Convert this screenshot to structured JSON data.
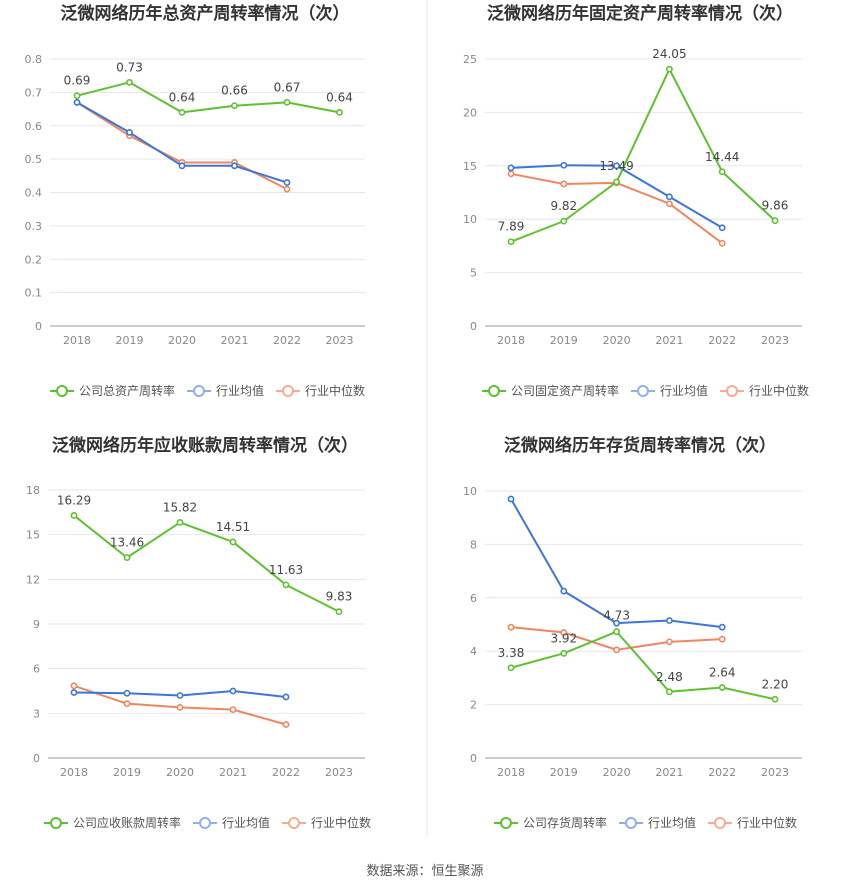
{
  "source_text": "数据来源：恒生聚源",
  "legend_labels": {
    "industry_avg": "行业均值",
    "industry_median": "行业中位数"
  },
  "colors": {
    "company": "#5cc22e",
    "industry_avg": "#3b76d8",
    "industry_median": "#f0865f",
    "grid": "#e6e6f0",
    "divider": "#e8e8e8"
  },
  "chart_data": [
    {
      "type": "line",
      "title": "泛微网络历年总资产周转率情况（次）",
      "categories": [
        "2018",
        "2019",
        "2020",
        "2021",
        "2022",
        "2023"
      ],
      "ylim": [
        0,
        0.8
      ],
      "yticks": [
        "0",
        "0.1",
        "0.2",
        "0.3",
        "0.4",
        "0.5",
        "0.6",
        "0.7",
        "0.8"
      ],
      "grid": true,
      "legend_position": "bottom",
      "series": [
        {
          "name": "公司总资产周转率",
          "values": [
            0.69,
            0.73,
            0.64,
            0.66,
            0.67,
            0.64
          ],
          "labels": [
            "0.69",
            "0.73",
            "0.64",
            "0.66",
            "0.67",
            "0.64"
          ]
        },
        {
          "name": "行业均值",
          "values": [
            0.67,
            0.58,
            0.48,
            0.48,
            0.43,
            null
          ]
        },
        {
          "name": "行业中位数",
          "values": [
            0.67,
            0.57,
            0.49,
            0.49,
            0.41,
            null
          ]
        }
      ]
    },
    {
      "type": "line",
      "title": "泛微网络历年固定资产周转率情况（次）",
      "categories": [
        "2018",
        "2019",
        "2020",
        "2021",
        "2022",
        "2023"
      ],
      "ylim": [
        0,
        25
      ],
      "yticks": [
        "0",
        "5",
        "10",
        "15",
        "20",
        "25"
      ],
      "grid": true,
      "legend_position": "bottom",
      "series": [
        {
          "name": "公司固定资产周转率",
          "values": [
            7.89,
            9.82,
            13.49,
            24.05,
            14.44,
            9.86
          ],
          "labels": [
            "7.89",
            "9.82",
            "13.49",
            "24.05",
            "14.44",
            "9.86"
          ]
        },
        {
          "name": "行业均值",
          "values": [
            14.8,
            15.05,
            15.0,
            12.1,
            9.2,
            null
          ]
        },
        {
          "name": "行业中位数",
          "values": [
            14.25,
            13.3,
            13.4,
            11.45,
            7.75,
            null
          ]
        }
      ]
    },
    {
      "type": "line",
      "title": "泛微网络历年应收账款周转率情况（次）",
      "categories": [
        "2018",
        "2019",
        "2020",
        "2021",
        "2022",
        "2023"
      ],
      "ylim": [
        0,
        18
      ],
      "yticks": [
        "0",
        "3",
        "6",
        "9",
        "12",
        "15",
        "18"
      ],
      "grid": true,
      "legend_position": "bottom",
      "series": [
        {
          "name": "公司应收账款周转率",
          "values": [
            16.29,
            13.46,
            15.82,
            14.51,
            11.63,
            9.83
          ],
          "labels": [
            "16.29",
            "13.46",
            "15.82",
            "14.51",
            "11.63",
            "9.83"
          ]
        },
        {
          "name": "行业均值",
          "values": [
            4.4,
            4.35,
            4.2,
            4.5,
            4.1,
            null
          ]
        },
        {
          "name": "行业中位数",
          "values": [
            4.85,
            3.65,
            3.4,
            3.25,
            2.25,
            null
          ]
        }
      ]
    },
    {
      "type": "line",
      "title": "泛微网络历年存货周转率情况（次）",
      "categories": [
        "2018",
        "2019",
        "2020",
        "2021",
        "2022",
        "2023"
      ],
      "ylim": [
        0,
        10
      ],
      "yticks": [
        "0",
        "2",
        "4",
        "6",
        "8",
        "10"
      ],
      "grid": true,
      "legend_position": "bottom",
      "series": [
        {
          "name": "公司存货周转率",
          "values": [
            3.38,
            3.92,
            4.73,
            2.48,
            2.64,
            2.2
          ],
          "labels": [
            "3.38",
            "3.92",
            "4.73",
            "2.48",
            "2.64",
            "2.20"
          ]
        },
        {
          "name": "行业均值",
          "values": [
            9.7,
            6.25,
            5.05,
            5.15,
            4.9,
            null
          ]
        },
        {
          "name": "行业中位数",
          "values": [
            4.9,
            4.7,
            4.05,
            4.35,
            4.45,
            null
          ]
        }
      ]
    }
  ]
}
